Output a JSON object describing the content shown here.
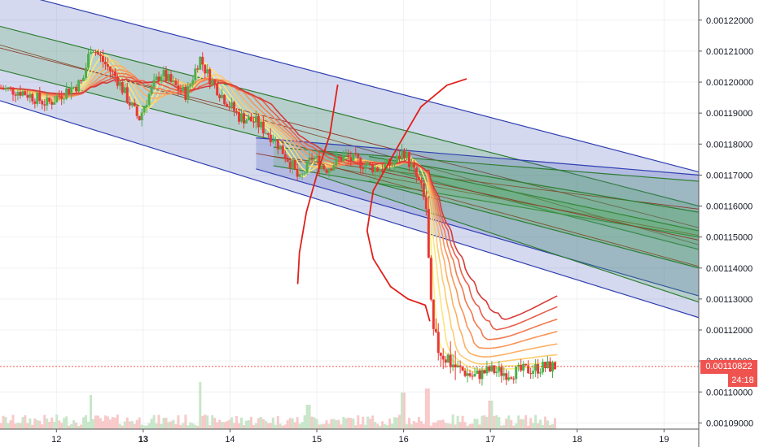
{
  "colors": {
    "up": "#4caf50",
    "down": "#e53935",
    "vol_up": "#c8e6c9",
    "vol_down": "#f8c9c9",
    "channel_blue_fill": "#3f51b5",
    "channel_green_fill": "#4caf50",
    "drawing_red": "#e0201b"
  },
  "price_tag": {
    "value": "0.00110822",
    "timer": "24:18"
  },
  "chart_data": {
    "type": "candlestick",
    "y_ticks": [
      "0.00122000",
      "0.00121000",
      "0.00120000",
      "0.00119000",
      "0.00118000",
      "0.00117000",
      "0.00116000",
      "0.00115000",
      "0.00114000",
      "0.00113000",
      "0.00112000",
      "0.00111000",
      "0.00110000",
      "0.00109000"
    ],
    "y_values": [
      0.00122,
      0.00121,
      0.0012,
      0.00119,
      0.00118,
      0.00117,
      0.00116,
      0.00115,
      0.00114,
      0.00113,
      0.00112,
      0.00111,
      0.0011,
      0.00109
    ],
    "ylim": [
      0.001088,
      0.0012265
    ],
    "x_ticks": [
      {
        "label": "12",
        "day": 12,
        "bold": false
      },
      {
        "label": "13",
        "day": 13,
        "bold": true
      },
      {
        "label": "14",
        "day": 14,
        "bold": false
      },
      {
        "label": "15",
        "day": 15,
        "bold": false
      },
      {
        "label": "16",
        "day": 16,
        "bold": false
      },
      {
        "label": "17",
        "day": 17,
        "bold": false
      },
      {
        "label": "18",
        "day": 18,
        "bold": false
      },
      {
        "label": "19",
        "day": 19,
        "bold": false
      }
    ],
    "xlim": [
      11.35,
      19.4
    ],
    "last_price": 0.00110822,
    "price_path": [
      [
        11.35,
        0.001198
      ],
      [
        11.6,
        0.001197
      ],
      [
        11.9,
        0.001193
      ],
      [
        12.1,
        0.001197
      ],
      [
        12.3,
        0.0012
      ],
      [
        12.4,
        0.001212
      ],
      [
        12.5,
        0.001208
      ],
      [
        12.7,
        0.001201
      ],
      [
        12.85,
        0.001193
      ],
      [
        12.95,
        0.001188
      ],
      [
        13.05,
        0.001195
      ],
      [
        13.2,
        0.001203
      ],
      [
        13.35,
        0.001199
      ],
      [
        13.5,
        0.001196
      ],
      [
        13.65,
        0.001208
      ],
      [
        13.75,
        0.001202
      ],
      [
        13.9,
        0.001196
      ],
      [
        14.1,
        0.001189
      ],
      [
        14.3,
        0.001187
      ],
      [
        14.5,
        0.001182
      ],
      [
        14.7,
        0.001174
      ],
      [
        14.8,
        0.001168
      ],
      [
        14.95,
        0.001176
      ],
      [
        15.1,
        0.001172
      ],
      [
        15.3,
        0.001176
      ],
      [
        15.5,
        0.001174
      ],
      [
        15.7,
        0.001172
      ],
      [
        15.9,
        0.001174
      ],
      [
        16.0,
        0.001178
      ],
      [
        16.1,
        0.001172
      ],
      [
        16.2,
        0.001166
      ],
      [
        16.27,
        0.001158
      ],
      [
        16.3,
        0.00113
      ],
      [
        16.35,
        0.001116
      ],
      [
        16.45,
        0.001113
      ],
      [
        16.6,
        0.001108
      ],
      [
        16.8,
        0.001105
      ],
      [
        17.0,
        0.001107
      ],
      [
        17.2,
        0.001106
      ],
      [
        17.4,
        0.001107
      ],
      [
        17.6,
        0.001108
      ],
      [
        17.77,
        0.00110822
      ]
    ],
    "volume_spikes": [
      [
        12.4,
        42
      ],
      [
        13.65,
        58
      ],
      [
        14.9,
        30
      ],
      [
        16.0,
        45
      ],
      [
        16.28,
        50
      ],
      [
        17.0,
        35
      ]
    ],
    "ma_fan": {
      "count": 8,
      "colors": [
        "#fff176",
        "#fde47a",
        "#fdcb6e",
        "#fbb063",
        "#f8945a",
        "#f27a52",
        "#e85e49",
        "#d63b3b"
      ],
      "end_values": [
        0.00110822,
        0.0011095,
        0.001112,
        0.0011155,
        0.0011195,
        0.0011235,
        0.0011275,
        0.001131
      ]
    },
    "channels": [
      {
        "kind": "blue",
        "upper": [
          [
            11.35,
            0.00123
          ],
          [
            19.4,
            0.001171
          ]
        ],
        "lower": [
          [
            11.35,
            0.001194
          ],
          [
            19.4,
            0.001124
          ]
        ]
      },
      {
        "kind": "green",
        "upper": [
          [
            11.35,
            0.001218
          ],
          [
            19.4,
            0.00116
          ]
        ],
        "lower": [
          [
            11.35,
            0.001204
          ],
          [
            19.4,
            0.001146
          ]
        ]
      },
      {
        "kind": "blue",
        "upper": [
          [
            14.3,
            0.001182
          ],
          [
            19.4,
            0.00117
          ]
        ],
        "lower": [
          [
            14.3,
            0.001172
          ],
          [
            19.4,
            0.001131
          ]
        ]
      },
      {
        "kind": "green",
        "upper": [
          [
            14.5,
            0.001179
          ],
          [
            19.4,
            0.001168
          ]
        ],
        "lower": [
          [
            14.5,
            0.001173
          ],
          [
            19.4,
            0.00115
          ]
        ]
      },
      {
        "kind": "green",
        "upper": [
          [
            15.0,
            0.001178
          ],
          [
            19.4,
            0.001152
          ]
        ],
        "lower": [
          [
            15.0,
            0.00117
          ],
          [
            19.4,
            0.001129
          ]
        ]
      },
      {
        "kind": "green",
        "upper": [
          [
            15.6,
            0.001176
          ],
          [
            19.4,
            0.001158
          ]
        ],
        "lower": [
          [
            15.6,
            0.001168
          ],
          [
            19.4,
            0.00114
          ]
        ]
      }
    ],
    "drawings": [
      [
        [
          15.24,
          0.001199
        ],
        [
          15.15,
          0.001183
        ],
        [
          15.0,
          0.00117
        ],
        [
          14.88,
          0.001158
        ],
        [
          14.8,
          0.001145
        ],
        [
          14.78,
          0.001135
        ]
      ],
      [
        [
          16.72,
          0.001201
        ],
        [
          16.5,
          0.001199
        ],
        [
          16.2,
          0.001192
        ],
        [
          15.95,
          0.00118
        ],
        [
          15.65,
          0.001165
        ],
        [
          15.58,
          0.001152
        ],
        [
          15.65,
          0.001143
        ],
        [
          15.85,
          0.001134
        ],
        [
          16.05,
          0.00113
        ],
        [
          16.25,
          0.001128
        ],
        [
          16.3,
          0.001123
        ]
      ]
    ]
  }
}
